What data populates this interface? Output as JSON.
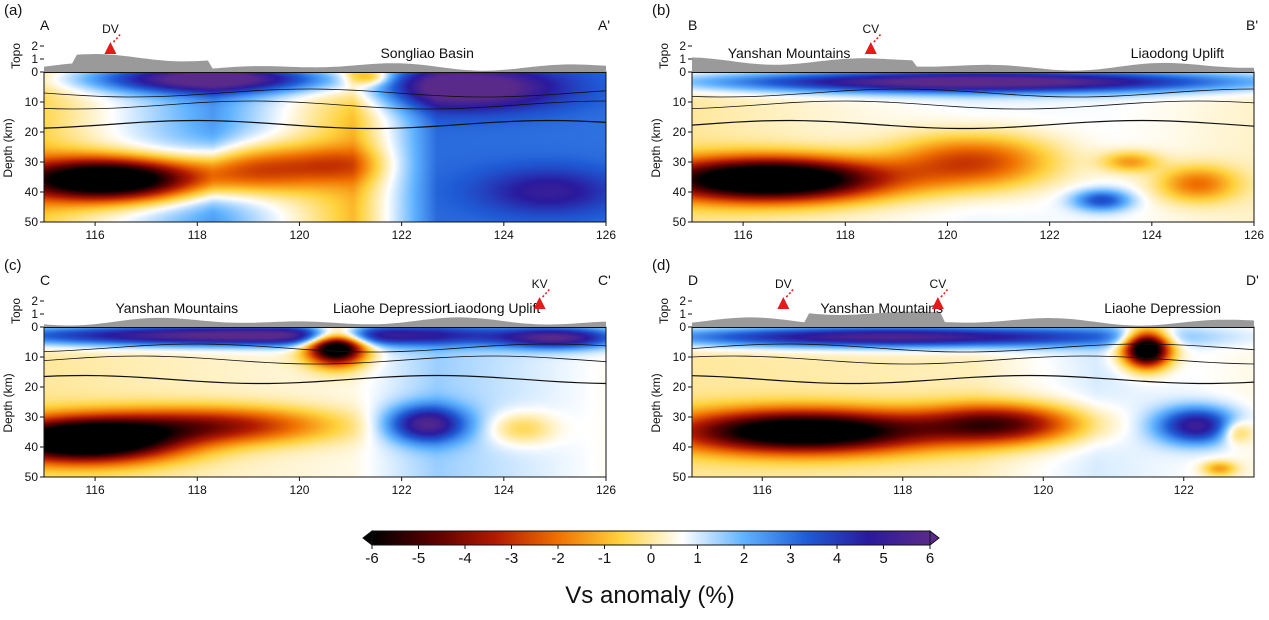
{
  "panels": [
    {
      "id": "a",
      "tag": "(a)",
      "start": "A",
      "end": "A'",
      "lon_ticks": [
        "116",
        "118",
        "120",
        "122",
        "124",
        "126"
      ],
      "xmin": 115,
      "xmax": 126,
      "annotations": [
        {
          "text": "Songliao Basin",
          "lon": 122.5,
          "kind": "label"
        },
        {
          "text": "DV",
          "lon": 116.3,
          "kind": "volcano"
        }
      ]
    },
    {
      "id": "b",
      "tag": "(b)",
      "start": "B",
      "end": "B'",
      "lon_ticks": [
        "116",
        "118",
        "120",
        "122",
        "124",
        "126"
      ],
      "xmin": 115,
      "xmax": 126,
      "annotations": [
        {
          "text": "Yanshan Mountains",
          "lon": 116.9,
          "kind": "label"
        },
        {
          "text": "CV",
          "lon": 118.5,
          "kind": "volcano"
        },
        {
          "text": "Liaodong Uplift",
          "lon": 124.5,
          "kind": "label"
        }
      ]
    },
    {
      "id": "c",
      "tag": "(c)",
      "start": "C",
      "end": "C'",
      "lon_ticks": [
        "116",
        "118",
        "120",
        "122",
        "124",
        "126"
      ],
      "xmin": 115,
      "xmax": 126,
      "annotations": [
        {
          "text": "Yanshan Mountains",
          "lon": 117.6,
          "kind": "label"
        },
        {
          "text": "Liaohe Depression",
          "lon": 121.8,
          "kind": "label"
        },
        {
          "text": "Liaodong Uplift",
          "lon": 123.8,
          "kind": "label"
        },
        {
          "text": "KV",
          "lon": 124.7,
          "kind": "volcano"
        }
      ]
    },
    {
      "id": "d",
      "tag": "(d)",
      "start": "D",
      "end": "D'",
      "lon_ticks": [
        "116",
        "118",
        "120",
        "122"
      ],
      "xmin": 115,
      "xmax": 123,
      "annotations": [
        {
          "text": "DV",
          "lon": 116.3,
          "kind": "volcano"
        },
        {
          "text": "Yanshan Mountains",
          "lon": 117.7,
          "kind": "label"
        },
        {
          "text": "CV",
          "lon": 118.5,
          "kind": "volcano"
        },
        {
          "text": "Liaohe Depression",
          "lon": 121.7,
          "kind": "label"
        }
      ]
    }
  ],
  "axes": {
    "topo_label": "Topo",
    "topo_ticks": [
      "2",
      "1",
      "0"
    ],
    "depth_label": "Depth (km)",
    "depth_ticks": [
      "10",
      "20",
      "30",
      "40",
      "50"
    ]
  },
  "colorbar": {
    "title": "Vs anomaly (%)",
    "ticks": [
      "-6",
      "-5",
      "-4",
      "-3",
      "-2",
      "-1",
      "0",
      "1",
      "2",
      "3",
      "4",
      "5",
      "6"
    ],
    "min": -6,
    "max": 6,
    "colors": [
      "#000000",
      "#5a0000",
      "#b31a00",
      "#f07000",
      "#ffd23c",
      "#ffffff",
      "#5fb2ff",
      "#1f5cd6",
      "#2a1a9e",
      "#5a2a8a"
    ]
  },
  "colors": {
    "topo_fill": "#9a9a9a",
    "volcano": "#e61a1a"
  }
}
